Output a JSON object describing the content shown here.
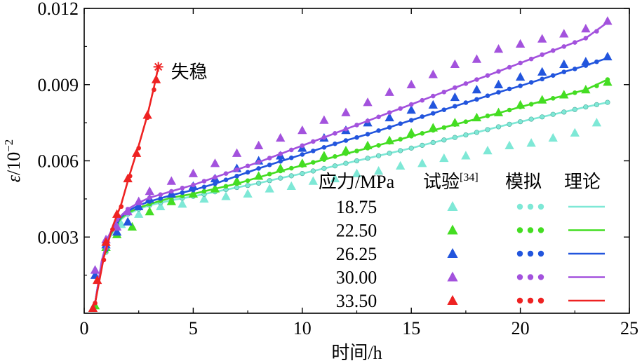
{
  "chart_data": {
    "type": "line",
    "xlabel": "时间/h",
    "ylabel_main": "ε",
    "ylabel_unit": "/10",
    "ylabel_exp": "−2",
    "xlim": [
      0,
      25
    ],
    "ylim": [
      0,
      0.012
    ],
    "xticks": [
      0,
      5,
      10,
      15,
      20,
      25
    ],
    "xtick_labels": [
      "0",
      "5",
      "10",
      "15",
      "20",
      "25"
    ],
    "yticks": [
      0.003,
      0.006,
      0.009,
      0.012
    ],
    "ytick_labels": [
      "0.003",
      "0.006",
      "0.009",
      "0.012"
    ],
    "grid": false,
    "annotation": {
      "text": "失稳",
      "x": 3.4,
      "y": 0.0097
    },
    "legend": {
      "position": "lower-right",
      "header_stress": "应力/MPa",
      "header_test": "试验",
      "header_test_ref": "[34]",
      "header_sim": "模拟",
      "header_theory": "理论"
    },
    "series": [
      {
        "name": "18.75",
        "color": "#7ee8d6",
        "theory": {
          "x": [
            0.5,
            0.8,
            1.1,
            1.4,
            1.7,
            2.0,
            2.5,
            3,
            4,
            5,
            6,
            7,
            8,
            9,
            10,
            11,
            12,
            13,
            14,
            15,
            16,
            17,
            18,
            19,
            20,
            21,
            22,
            23,
            24
          ],
          "y": [
            0.0004,
            0.0019,
            0.00285,
            0.00335,
            0.0037,
            0.0039,
            0.0041,
            0.00425,
            0.00445,
            0.0046,
            0.00478,
            0.00495,
            0.00512,
            0.00532,
            0.0055,
            0.0057,
            0.0059,
            0.0061,
            0.0063,
            0.0065,
            0.00672,
            0.00692,
            0.00712,
            0.00734,
            0.00754,
            0.00773,
            0.00792,
            0.00812,
            0.0083
          ]
        },
        "sim": {
          "x": [
            1,
            1.5,
            2,
            2.5,
            3,
            3.5,
            4,
            4.5,
            5,
            5.5,
            6,
            6.5,
            7,
            7.5,
            8,
            8.5,
            9,
            9.5,
            10,
            10.5,
            11,
            11.5,
            12,
            12.5,
            13,
            13.5,
            14,
            14.5,
            15,
            15.5,
            16,
            16.5,
            17,
            17.5,
            18,
            18.5,
            19,
            19.5,
            20,
            20.5,
            21,
            21.5,
            22,
            22.5,
            23,
            23.5,
            24
          ],
          "y": [
            0.0024,
            0.0035,
            0.0039,
            0.0041,
            0.00425,
            0.00435,
            0.00445,
            0.00453,
            0.0046,
            0.00468,
            0.00478,
            0.00487,
            0.00495,
            0.00503,
            0.00512,
            0.00522,
            0.00532,
            0.00541,
            0.0055,
            0.0056,
            0.0057,
            0.0058,
            0.0059,
            0.006,
            0.0061,
            0.0062,
            0.0063,
            0.0064,
            0.0065,
            0.00661,
            0.00672,
            0.00682,
            0.00692,
            0.00702,
            0.00712,
            0.00723,
            0.00734,
            0.00744,
            0.00754,
            0.00764,
            0.00773,
            0.00783,
            0.00792,
            0.00802,
            0.00812,
            0.00821,
            0.0083
          ]
        },
        "test": {
          "x": [
            0.5,
            1.0,
            1.7,
            2.5,
            3.5,
            4.5,
            5.5,
            6.5,
            7.5,
            8.5,
            9.5,
            10.5,
            11.5,
            12.5,
            13.5,
            14.5,
            15.5,
            16.5,
            17.5,
            18.5,
            19.5,
            20.5,
            21.5,
            22.5,
            23.5
          ],
          "y": [
            0.0017,
            0.0029,
            0.0035,
            0.0039,
            0.0042,
            0.0043,
            0.0045,
            0.0046,
            0.0047,
            0.0049,
            0.005,
            0.0052,
            0.0053,
            0.0055,
            0.0056,
            0.0058,
            0.0059,
            0.0061,
            0.0062,
            0.0064,
            0.0066,
            0.0067,
            0.0069,
            0.0071,
            0.0075
          ]
        }
      },
      {
        "name": "22.50",
        "color": "#44dd22",
        "theory": {
          "x": [
            0.5,
            0.8,
            1.1,
            1.4,
            1.7,
            2.0,
            2.5,
            3,
            4,
            5,
            6,
            7,
            8,
            9,
            10,
            11,
            12,
            13,
            14,
            15,
            16,
            17,
            18,
            19,
            20,
            21,
            22,
            23,
            24
          ],
          "y": [
            0.0004,
            0.00195,
            0.0029,
            0.0034,
            0.00375,
            0.00395,
            0.00415,
            0.0043,
            0.00455,
            0.0047,
            0.0049,
            0.0051,
            0.00535,
            0.0056,
            0.00582,
            0.00605,
            0.00628,
            0.0065,
            0.00673,
            0.00697,
            0.0072,
            0.00743,
            0.00765,
            0.00788,
            0.00812,
            0.00835,
            0.00857,
            0.0088,
            0.0092
          ]
        },
        "sim": {
          "x": [
            1,
            1.5,
            2,
            2.5,
            3,
            3.5,
            4,
            4.5,
            5,
            5.5,
            6,
            6.5,
            7,
            7.5,
            8,
            8.5,
            9,
            9.5,
            10,
            10.5,
            11,
            11.5,
            12,
            12.5,
            13,
            13.5,
            14,
            14.5,
            15,
            15.5,
            16,
            16.5,
            17,
            17.5,
            18,
            18.5,
            19,
            19.5,
            20,
            20.5,
            21,
            21.5,
            22,
            22.5,
            23,
            23.5,
            24
          ],
          "y": [
            0.00245,
            0.00355,
            0.00395,
            0.00415,
            0.0043,
            0.00443,
            0.00455,
            0.00462,
            0.0047,
            0.0048,
            0.0049,
            0.005,
            0.0051,
            0.00522,
            0.00535,
            0.00548,
            0.0056,
            0.00571,
            0.00582,
            0.00594,
            0.00605,
            0.00617,
            0.00628,
            0.00639,
            0.0065,
            0.00661,
            0.00673,
            0.00685,
            0.00697,
            0.00708,
            0.0072,
            0.00731,
            0.00743,
            0.00754,
            0.00765,
            0.00777,
            0.00788,
            0.008,
            0.00812,
            0.00823,
            0.00835,
            0.00846,
            0.00857,
            0.00868,
            0.0088,
            0.00895,
            0.0092
          ]
        },
        "test": {
          "x": [
            0.5,
            1.0,
            1.5,
            2.2,
            3,
            4,
            5,
            6,
            7,
            8,
            9,
            10,
            11,
            12,
            13,
            14,
            15,
            16,
            17,
            18,
            19,
            20,
            21,
            22,
            23,
            24
          ],
          "y": [
            0.0003,
            0.0026,
            0.0031,
            0.0034,
            0.004,
            0.0044,
            0.0047,
            0.0049,
            0.0052,
            0.0054,
            0.0057,
            0.0059,
            0.0062,
            0.0064,
            0.0066,
            0.0068,
            0.0071,
            0.0073,
            0.0075,
            0.0077,
            0.0079,
            0.0082,
            0.0084,
            0.0086,
            0.0088,
            0.0091
          ]
        }
      },
      {
        "name": "26.25",
        "color": "#2255dd",
        "theory": {
          "x": [
            0.5,
            0.8,
            1.1,
            1.4,
            1.7,
            2.0,
            2.5,
            3,
            4,
            5,
            6,
            7,
            8,
            9,
            10,
            11,
            12,
            13,
            14,
            15,
            16,
            17,
            18,
            19,
            20,
            21,
            22,
            23,
            24
          ],
          "y": [
            0.0004,
            0.002,
            0.00295,
            0.00345,
            0.0038,
            0.00402,
            0.00425,
            0.0044,
            0.00465,
            0.00485,
            0.0051,
            0.0054,
            0.0057,
            0.00598,
            0.00625,
            0.00653,
            0.0068,
            0.00705,
            0.00732,
            0.0076,
            0.00787,
            0.00815,
            0.00842,
            0.0087,
            0.00895,
            0.00922,
            0.0095,
            0.00975,
            0.01005
          ]
        },
        "sim": {
          "x": [
            1,
            1.5,
            2,
            2.5,
            3,
            3.5,
            4,
            4.5,
            5,
            5.5,
            6,
            6.5,
            7,
            7.5,
            8,
            8.5,
            9,
            9.5,
            10,
            10.5,
            11,
            11.5,
            12,
            12.5,
            13,
            13.5,
            14,
            14.5,
            15,
            15.5,
            16,
            16.5,
            17,
            17.5,
            18,
            18.5,
            19,
            19.5,
            20,
            20.5,
            21,
            21.5,
            22,
            22.5,
            23,
            23.5,
            24
          ],
          "y": [
            0.0025,
            0.00362,
            0.00402,
            0.00425,
            0.0044,
            0.00452,
            0.00465,
            0.00475,
            0.00485,
            0.00497,
            0.0051,
            0.00525,
            0.0054,
            0.00555,
            0.0057,
            0.00584,
            0.00598,
            0.00612,
            0.00625,
            0.00639,
            0.00653,
            0.00667,
            0.0068,
            0.00692,
            0.00705,
            0.00719,
            0.00732,
            0.00746,
            0.0076,
            0.00774,
            0.00787,
            0.00801,
            0.00815,
            0.00829,
            0.00842,
            0.00856,
            0.0087,
            0.00883,
            0.00895,
            0.00909,
            0.00922,
            0.00936,
            0.0095,
            0.00962,
            0.00975,
            0.0099,
            0.01005
          ]
        },
        "test": {
          "x": [
            0.5,
            1.0,
            1.5,
            2.0,
            2.5,
            3,
            4,
            5,
            6,
            7,
            8,
            9,
            10,
            11,
            12,
            13,
            14,
            15,
            16,
            17,
            18,
            19,
            20,
            21,
            22,
            23,
            24
          ],
          "y": [
            0.0015,
            0.0027,
            0.0032,
            0.0036,
            0.0042,
            0.0045,
            0.0047,
            0.005,
            0.0053,
            0.0057,
            0.006,
            0.0062,
            0.0065,
            0.0069,
            0.0072,
            0.0075,
            0.0077,
            0.008,
            0.0082,
            0.0085,
            0.0088,
            0.009,
            0.0093,
            0.0095,
            0.0098,
            0.0099,
            0.0101
          ]
        }
      },
      {
        "name": "30.00",
        "color": "#a352dd",
        "theory": {
          "x": [
            0.5,
            0.8,
            1.1,
            1.4,
            1.7,
            2.0,
            2.5,
            3,
            4,
            5,
            6,
            7,
            8,
            9,
            10,
            11,
            12,
            13,
            14,
            15,
            16,
            17,
            18,
            19,
            20,
            21,
            22,
            23,
            24
          ],
          "y": [
            0.0004,
            0.00205,
            0.003,
            0.00352,
            0.00385,
            0.0041,
            0.00435,
            0.00455,
            0.0048,
            0.00505,
            0.00535,
            0.00565,
            0.00595,
            0.00627,
            0.0066,
            0.00692,
            0.00725,
            0.00757,
            0.0079,
            0.00822,
            0.00855,
            0.00888,
            0.0092,
            0.00952,
            0.00985,
            0.01018,
            0.0105,
            0.01083,
            0.01145
          ]
        },
        "sim": {
          "x": [
            1,
            1.5,
            2,
            2.5,
            3,
            3.5,
            4,
            4.5,
            5,
            5.5,
            6,
            6.5,
            7,
            7.5,
            8,
            8.5,
            9,
            9.5,
            10,
            10.5,
            11,
            11.5,
            12,
            12.5,
            13,
            13.5,
            14,
            14.5,
            15,
            15.5,
            16,
            16.5,
            17,
            17.5,
            18,
            18.5,
            19,
            19.5,
            20,
            20.5,
            21,
            21.5,
            22,
            22.5,
            23,
            23.5,
            24
          ],
          "y": [
            0.00255,
            0.00368,
            0.0041,
            0.00435,
            0.00455,
            0.00467,
            0.0048,
            0.00493,
            0.00505,
            0.0052,
            0.00535,
            0.0055,
            0.00565,
            0.0058,
            0.00595,
            0.00611,
            0.00627,
            0.00643,
            0.0066,
            0.00676,
            0.00692,
            0.00708,
            0.00725,
            0.00741,
            0.00757,
            0.00773,
            0.0079,
            0.00806,
            0.00822,
            0.00838,
            0.00855,
            0.00871,
            0.00888,
            0.00904,
            0.0092,
            0.00936,
            0.00952,
            0.00968,
            0.00985,
            0.01001,
            0.01018,
            0.01034,
            0.0105,
            0.01066,
            0.01083,
            0.0111,
            0.01145
          ]
        },
        "test": {
          "x": [
            0.5,
            1.0,
            1.5,
            2.0,
            2.5,
            3,
            4,
            5,
            6,
            7,
            8,
            9,
            10,
            11,
            12,
            13,
            14,
            15,
            16,
            17,
            18,
            19,
            20,
            21,
            22,
            23,
            24
          ],
          "y": [
            0.0017,
            0.0029,
            0.0034,
            0.004,
            0.0044,
            0.0048,
            0.0052,
            0.0055,
            0.0059,
            0.0063,
            0.0066,
            0.0069,
            0.0072,
            0.0076,
            0.0079,
            0.0083,
            0.0087,
            0.009,
            0.0094,
            0.0098,
            0.01,
            0.0104,
            0.0106,
            0.0108,
            0.011,
            0.0112,
            0.0115
          ]
        }
      },
      {
        "name": "33.50",
        "color": "#ee2222",
        "theory": {
          "x": [
            0.5,
            0.9,
            1.3,
            1.7,
            2.1,
            2.5,
            2.9,
            3.2,
            3.4
          ],
          "y": [
            0.0004,
            0.0022,
            0.0034,
            0.0043,
            0.0055,
            0.0066,
            0.0078,
            0.0089,
            0.0097
          ]
        },
        "sim": {
          "x": [
            0.5,
            0.9,
            1.3,
            1.7,
            2.1,
            2.5,
            2.9,
            3.2
          ],
          "y": [
            0.0004,
            0.0021,
            0.0033,
            0.0042,
            0.0054,
            0.0065,
            0.0077,
            0.0088
          ]
        },
        "test": {
          "x": [
            0.4,
            0.6,
            1.0,
            1.5,
            2.0,
            2.4,
            2.9,
            3.3
          ],
          "y": [
            0.0002,
            0.0013,
            0.0028,
            0.0039,
            0.0053,
            0.0063,
            0.0078,
            0.0092
          ]
        },
        "failure_point": {
          "x": 3.4,
          "y": 0.0097
        }
      }
    ]
  }
}
